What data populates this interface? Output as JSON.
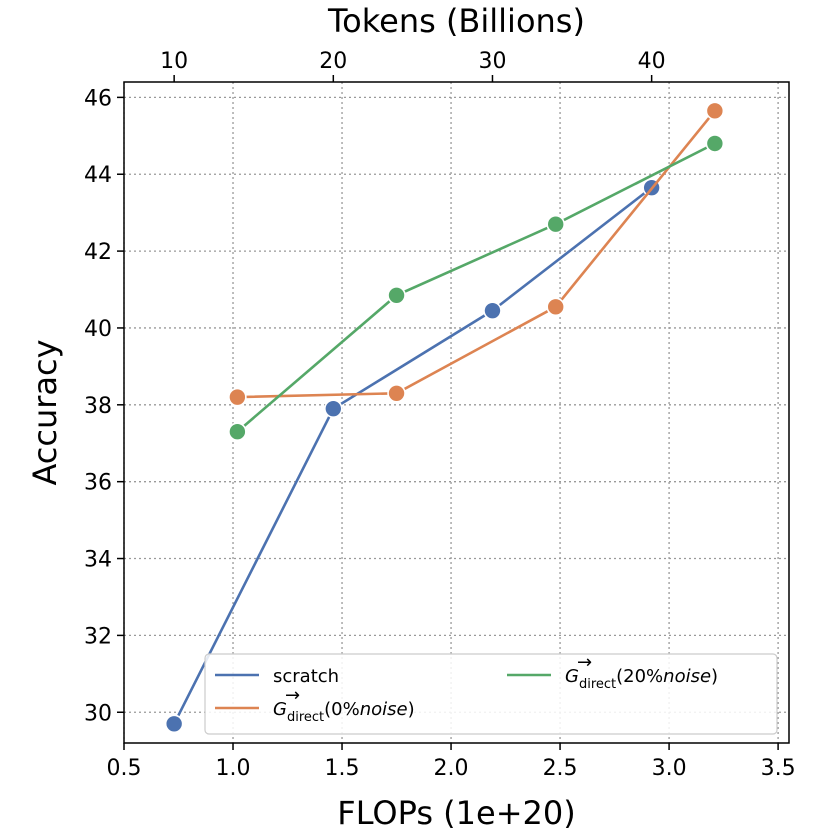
{
  "chart_data": {
    "type": "line",
    "xlabel": "FLOPs (1e+20)",
    "ylabel": "Accuracy",
    "top_xlabel": "Tokens (Billions)",
    "xlim": [
      0.5,
      3.55
    ],
    "ylim": [
      29.2,
      46.4
    ],
    "xticks": [
      "0.5",
      "1.0",
      "1.5",
      "2.0",
      "2.5",
      "3.0",
      "3.5"
    ],
    "yticks": [
      "30",
      "32",
      "34",
      "36",
      "38",
      "40",
      "42",
      "44",
      "46"
    ],
    "top_xticks": [
      "10",
      "20",
      "30",
      "40"
    ],
    "top_xtick_positions": [
      0.73,
      1.46,
      2.19,
      2.92
    ],
    "grid": true,
    "legend_position": "lower-right",
    "series": [
      {
        "name": "scratch",
        "color": "#4c72b0",
        "x": [
          0.73,
          1.46,
          2.19,
          2.92
        ],
        "y": [
          29.7,
          37.9,
          40.45,
          43.65
        ]
      },
      {
        "name": "G→direct(0%noise)",
        "color": "#dd8452",
        "x": [
          1.02,
          1.75,
          2.48,
          3.21
        ],
        "y": [
          38.2,
          38.3,
          40.55,
          45.65
        ]
      },
      {
        "name": "G→direct(20%noise)",
        "color": "#55a868",
        "x": [
          1.02,
          1.75,
          2.48,
          3.21
        ],
        "y": [
          37.3,
          40.85,
          42.7,
          44.8
        ]
      }
    ],
    "legend": {
      "entries": [
        {
          "base": "scratch",
          "sub": "",
          "mid": "",
          "ital": "",
          "tail": ""
        },
        {
          "base": "G",
          "sub": "direct",
          "mid": "(0%",
          "ital": "noise",
          "tail": ")"
        },
        {
          "base": "G",
          "sub": "direct",
          "mid": "(20%",
          "ital": "noise",
          "tail": ")"
        }
      ]
    }
  }
}
